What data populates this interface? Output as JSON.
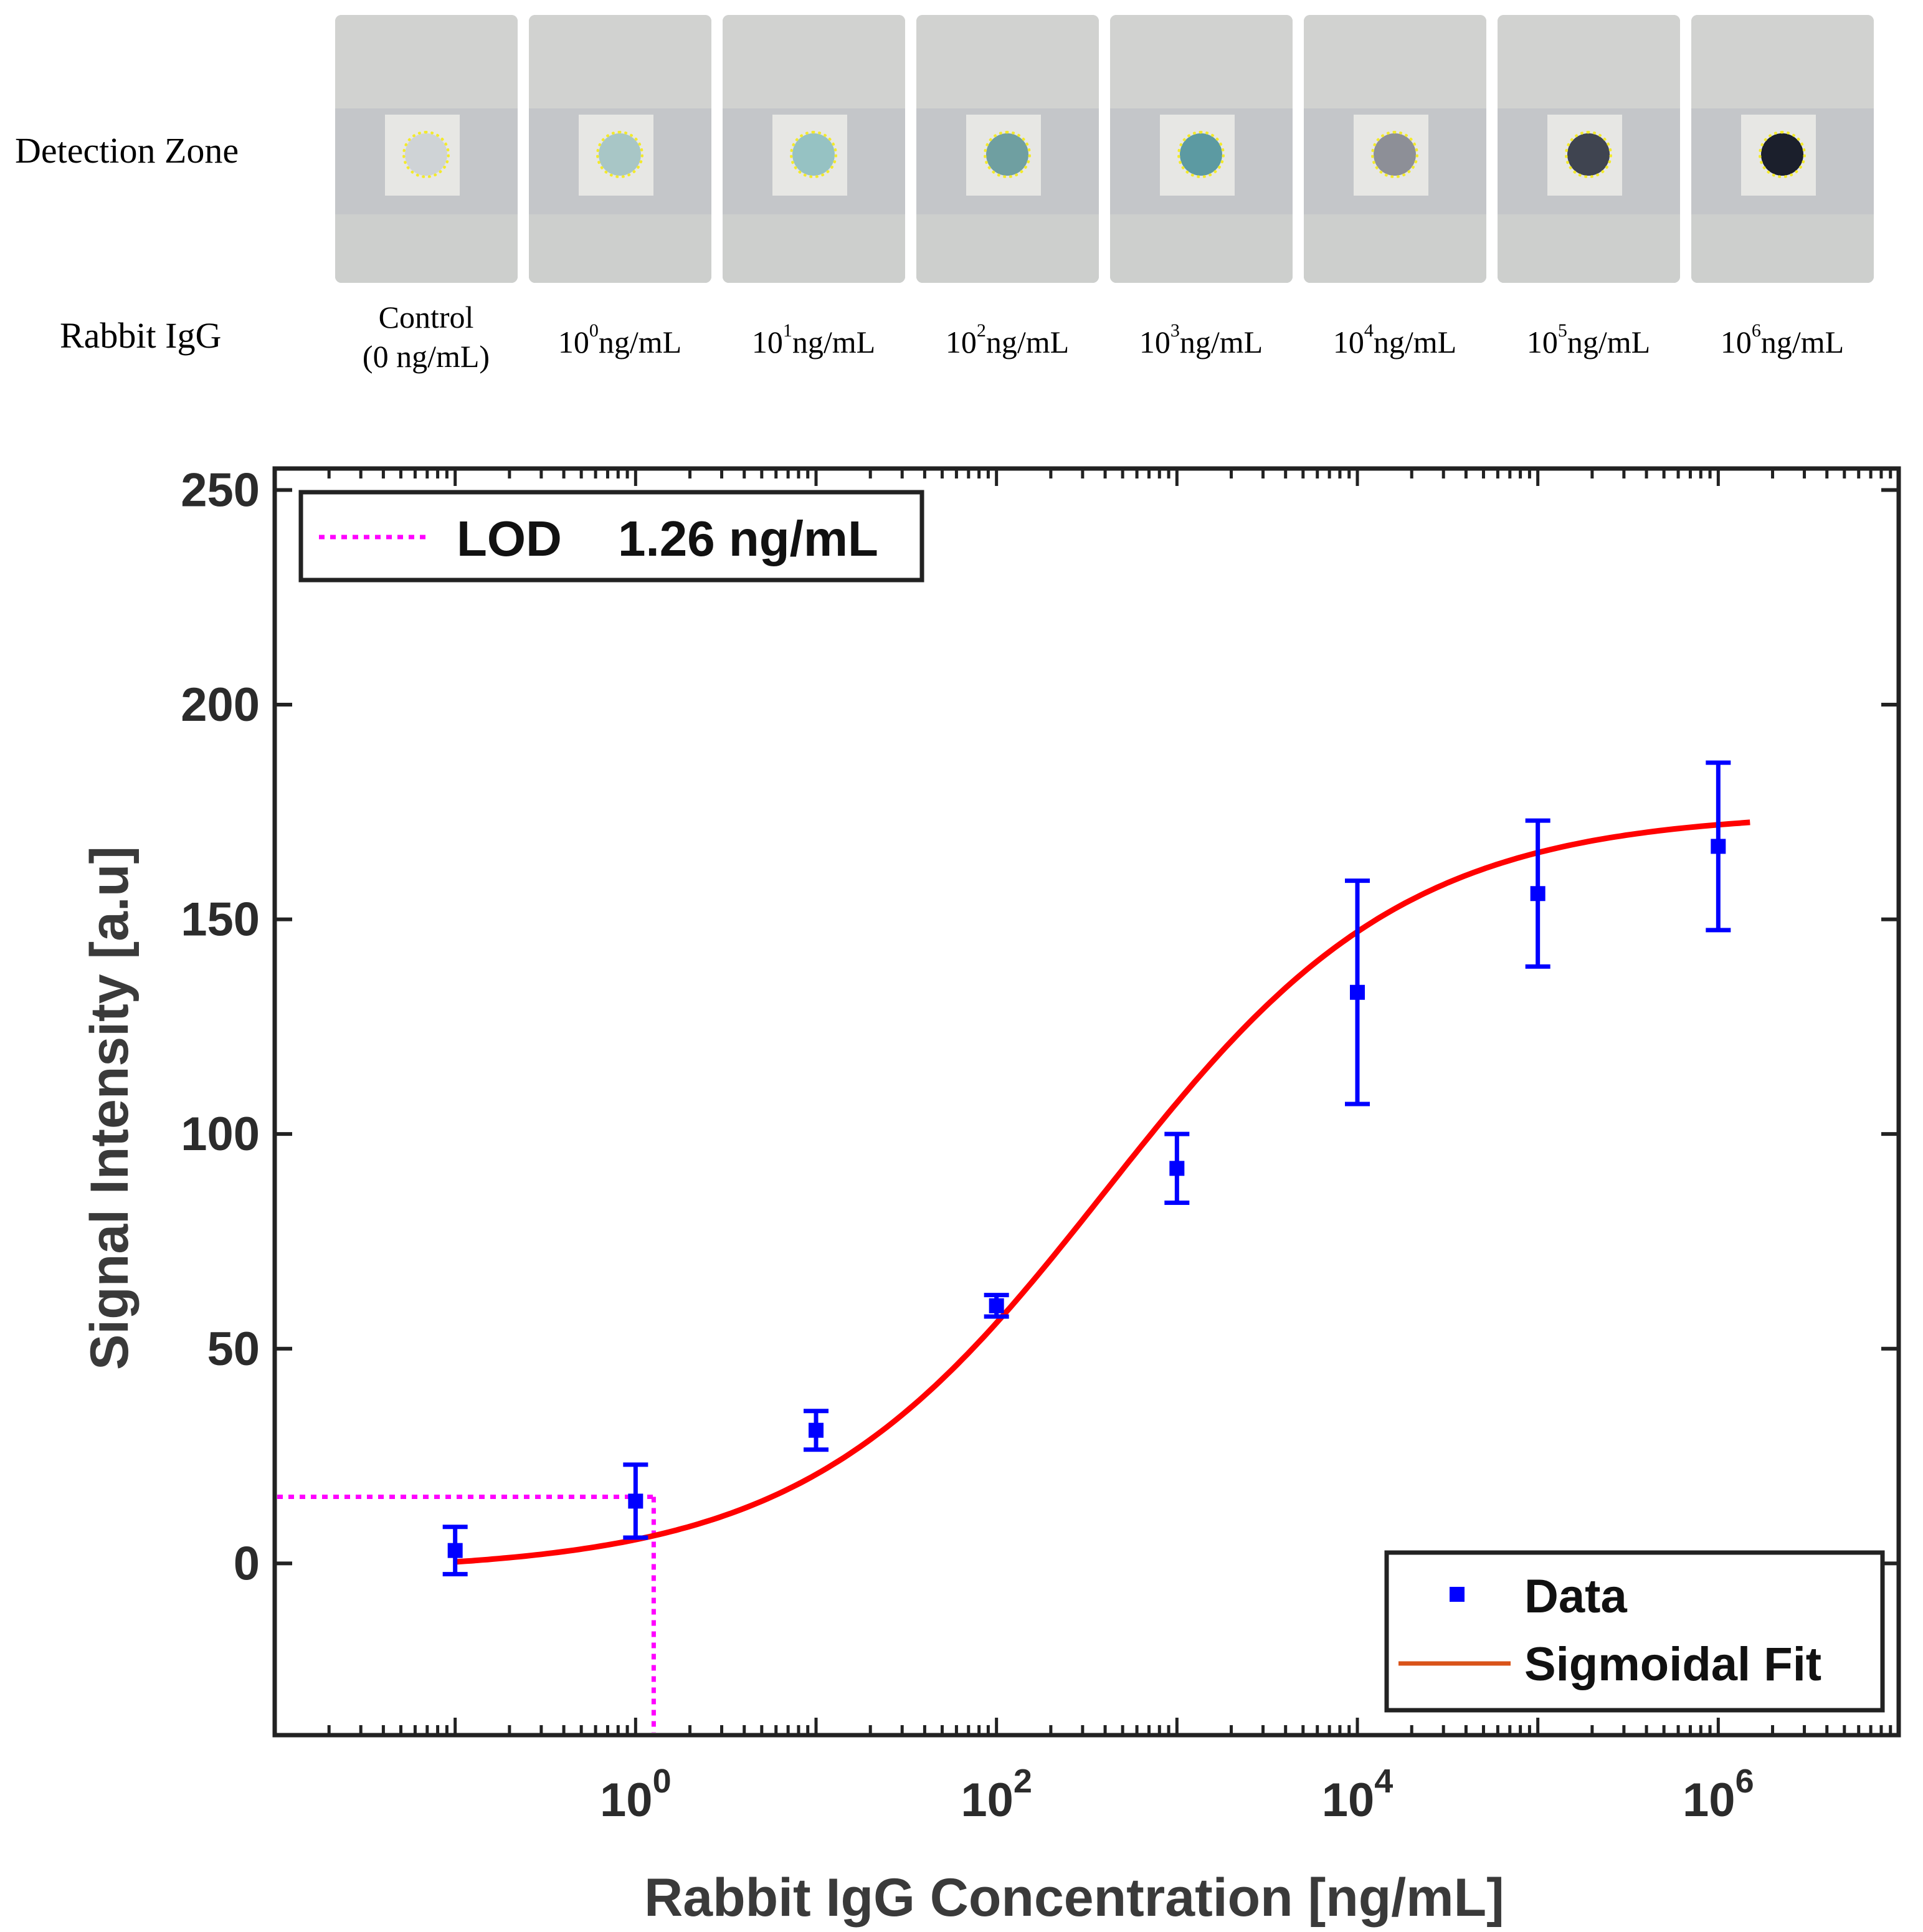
{
  "figure": {
    "detection_label": "Detection Zone",
    "analyte_label": "Rabbit IgG",
    "strips": [
      {
        "control": true,
        "line1": "Control",
        "line2": "(0 ng/mL)",
        "spot_color": "#cfd3d6"
      },
      {
        "base": "10",
        "exp": "0",
        "unit": "ng/mL",
        "spot_color": "#a8c6c6"
      },
      {
        "base": "10",
        "exp": "1",
        "unit": "ng/mL",
        "spot_color": "#96c2c3"
      },
      {
        "base": "10",
        "exp": "2",
        "unit": "ng/mL",
        "spot_color": "#6f9fa1"
      },
      {
        "base": "10",
        "exp": "3",
        "unit": "ng/mL",
        "spot_color": "#5c9aa2"
      },
      {
        "base": "10",
        "exp": "4",
        "unit": "ng/mL",
        "spot_color": "#8d8f97"
      },
      {
        "base": "10",
        "exp": "5",
        "unit": "ng/mL",
        "spot_color": "#3f4450"
      },
      {
        "base": "10",
        "exp": "6",
        "unit": "ng/mL",
        "spot_color": "#1b1f2c"
      }
    ]
  },
  "chart_data": {
    "type": "scatter",
    "title": "",
    "xlabel": "Rabbit IgG Concentration [ng/mL]",
    "ylabel": "Signal Intensity [a.u]",
    "x_scale": "log",
    "xlim": [
      0.01,
      10000000
    ],
    "ylim": [
      -40,
      255
    ],
    "yticks": [
      0,
      50,
      100,
      150,
      200,
      250
    ],
    "xticks": [
      {
        "value": 1,
        "base": "10",
        "exp": "0"
      },
      {
        "value": 100,
        "base": "10",
        "exp": "2"
      },
      {
        "value": 10000,
        "base": "10",
        "exp": "4"
      },
      {
        "value": 1000000,
        "base": "10",
        "exp": "6"
      }
    ],
    "series": [
      {
        "name": "Data",
        "color": "#0000ff",
        "points": [
          {
            "x": 0.1,
            "y": 3,
            "err": 5.5
          },
          {
            "x": 1,
            "y": 14.5,
            "err": 8.5
          },
          {
            "x": 10,
            "y": 31,
            "err": 4.5
          },
          {
            "x": 100,
            "y": 60,
            "err": 2.5
          },
          {
            "x": 1000,
            "y": 92,
            "err": 8
          },
          {
            "x": 10000,
            "y": 133,
            "err": 26
          },
          {
            "x": 100000,
            "y": 156,
            "err": 17
          },
          {
            "x": 1000000,
            "y": 167,
            "err": 19.5
          }
        ]
      },
      {
        "name": "Sigmoidal Fit",
        "color": "#ff0000",
        "legend_color": "#d95319",
        "x_range": [
          0.1,
          1500000
        ],
        "model": {
          "bottom": -2,
          "top": 175,
          "log_ec50": 2.6,
          "hill_slope": 0.52
        }
      }
    ],
    "lod": {
      "label": "LOD",
      "value_text": "1.26 ng/mL",
      "x": 1.26,
      "y": 15.5,
      "color": "#ff00ff"
    },
    "legend_position": "bottom-right",
    "grid": false
  }
}
